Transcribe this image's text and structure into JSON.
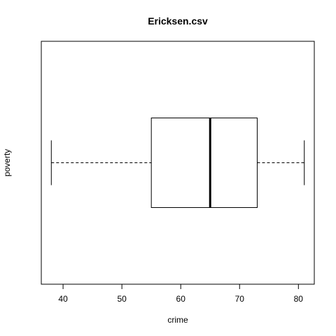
{
  "chart_data": {
    "type": "boxplot",
    "orientation": "horizontal",
    "title": "Ericksen.csv",
    "xlabel": "crime",
    "ylabel": "poverty",
    "xlim": [
      36.3,
      82.7
    ],
    "x_ticks": [
      40,
      50,
      60,
      70,
      80
    ],
    "grid": false,
    "box": {
      "whisker_low": 38,
      "q1": 55,
      "median": 65,
      "q3": 73,
      "whisker_high": 81
    },
    "colors": {
      "stroke": "#000000",
      "fill": "#ffffff"
    }
  }
}
